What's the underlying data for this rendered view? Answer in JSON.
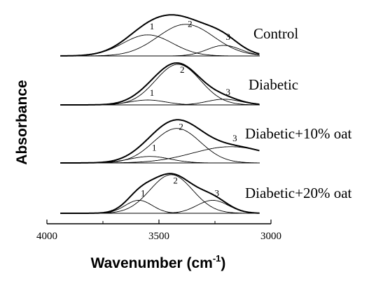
{
  "chart_data": {
    "type": "line",
    "title": "",
    "xlabel": "Wavenumber (cm",
    "xlabel_sup": "-1",
    "xlabel_close": ")",
    "ylabel": "Absorbance",
    "xlim": [
      4000,
      3000
    ],
    "xaxis_reversed": true,
    "xticks": [
      4000,
      3500,
      3000
    ],
    "xtick_labels": [
      "4000",
      "3500",
      "3000"
    ],
    "xrange_plotted": [
      3940,
      3050
    ],
    "grid": false,
    "legend": "none",
    "panels": [
      {
        "name": "Control",
        "components": [
          {
            "label": "1",
            "center": 3550,
            "height": 0.52,
            "width": 110
          },
          {
            "label": "2",
            "center": 3380,
            "height": 0.78,
            "width": 125
          },
          {
            "label": "3",
            "center": 3210,
            "height": 0.26,
            "width": 75
          }
        ]
      },
      {
        "name": "Diabetic",
        "components": [
          {
            "label": "1",
            "center": 3550,
            "height": 0.12,
            "width": 80
          },
          {
            "label": "2",
            "center": 3415,
            "height": 1.0,
            "width": 100
          },
          {
            "label": "3",
            "center": 3210,
            "height": 0.14,
            "width": 75
          }
        ]
      },
      {
        "name": "Diabetic+10% oat",
        "components": [
          {
            "label": "1",
            "center": 3540,
            "height": 0.16,
            "width": 90
          },
          {
            "label": "2",
            "center": 3420,
            "height": 0.85,
            "width": 105
          },
          {
            "label": "3",
            "center": 3180,
            "height": 0.4,
            "width": 170
          }
        ]
      },
      {
        "name": "Diabetic+20% oat",
        "components": [
          {
            "label": "1",
            "center": 3590,
            "height": 0.32,
            "width": 60
          },
          {
            "label": "2",
            "center": 3445,
            "height": 0.95,
            "width": 95
          },
          {
            "label": "3",
            "center": 3260,
            "height": 0.32,
            "width": 70
          }
        ]
      }
    ]
  }
}
